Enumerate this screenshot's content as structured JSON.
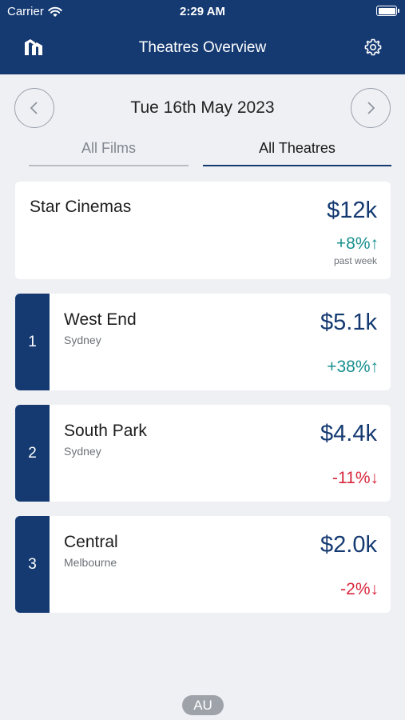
{
  "status": {
    "carrier": "Carrier",
    "time": "2:29 AM"
  },
  "nav": {
    "title": "Theatres Overview",
    "logo_icon": "logo-icon",
    "settings_icon": "gear-icon"
  },
  "date": {
    "label": "Tue 16th May 2023"
  },
  "tabs": {
    "films": "All Films",
    "theatres": "All Theatres",
    "active": "theatres"
  },
  "summary": {
    "name": "Star Cinemas",
    "amount": "$12k",
    "change": "+8%",
    "trend": "up",
    "period": "past week"
  },
  "theatres": [
    {
      "rank": "1",
      "name": "West End",
      "city": "Sydney",
      "amount": "$5.1k",
      "change": "+38%",
      "trend": "up"
    },
    {
      "rank": "2",
      "name": "South Park",
      "city": "Sydney",
      "amount": "$4.4k",
      "change": "-11%",
      "trend": "down"
    },
    {
      "rank": "3",
      "name": "Central",
      "city": "Melbourne",
      "amount": "$2.0k",
      "change": "-2%",
      "trend": "down"
    }
  ],
  "region": "AU",
  "colors": {
    "brand": "#153a72",
    "up": "#178f8f",
    "down": "#d8263b",
    "background": "#eff0f4"
  }
}
